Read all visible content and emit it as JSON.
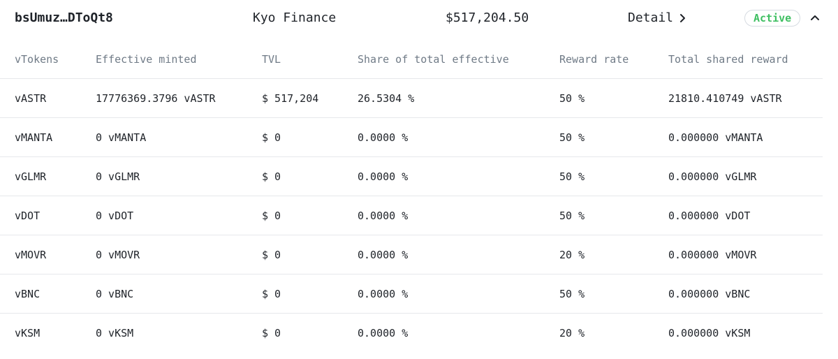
{
  "header": {
    "address": "bsUmuz…DToQt8",
    "project": "Kyo Finance",
    "tvl_total": "$517,204.50",
    "detail_label": "Detail",
    "status": "Active",
    "status_color": "#3fbf62"
  },
  "table": {
    "columns": [
      "vTokens",
      "Effective minted",
      "TVL",
      "Share of total effective",
      "Reward rate",
      "Total shared reward"
    ],
    "rows": [
      [
        "vASTR",
        "17776369.3796 vASTR",
        "$ 517,204",
        "26.5304 %",
        "50 %",
        "21810.410749 vASTR"
      ],
      [
        "vMANTA",
        "0 vMANTA",
        "$ 0",
        "0.0000 %",
        "50 %",
        "0.000000 vMANTA"
      ],
      [
        "vGLMR",
        "0 vGLMR",
        "$ 0",
        "0.0000 %",
        "50 %",
        "0.000000 vGLMR"
      ],
      [
        "vDOT",
        "0 vDOT",
        "$ 0",
        "0.0000 %",
        "50 %",
        "0.000000 vDOT"
      ],
      [
        "vMOVR",
        "0 vMOVR",
        "$ 0",
        "0.0000 %",
        "20 %",
        "0.000000 vMOVR"
      ],
      [
        "vBNC",
        "0 vBNC",
        "$ 0",
        "0.0000 %",
        "50 %",
        "0.000000 vBNC"
      ],
      [
        "vKSM",
        "0 vKSM",
        "$ 0",
        "0.0000 %",
        "20 %",
        "0.000000 vKSM"
      ]
    ]
  },
  "icons": {
    "detail": "chevron-right-icon",
    "collapse": "chevron-up-icon"
  }
}
